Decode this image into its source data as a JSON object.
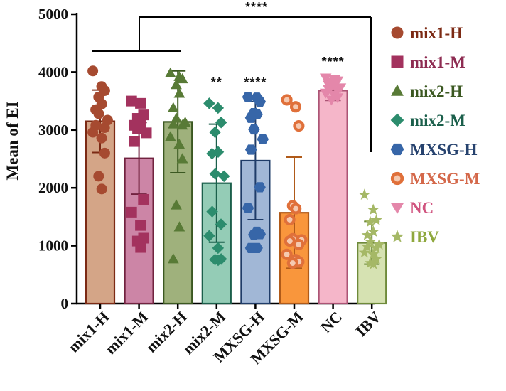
{
  "chart_data": {
    "type": "bar",
    "ylabel": "Mean of EI",
    "ylim": [
      0,
      5000
    ],
    "yticks": [
      0,
      1000,
      2000,
      3000,
      4000,
      5000
    ],
    "categories": [
      "mix1-H",
      "mix1-M",
      "mix2-H",
      "mix2-M",
      "MXSG-H",
      "MXSG-M",
      "NC",
      "IBV"
    ],
    "means": [
      3150,
      2510,
      3140,
      2080,
      2470,
      1570,
      3680,
      1050
    ],
    "sd": [
      540,
      620,
      880,
      1020,
      1020,
      960,
      170,
      370
    ],
    "points": [
      [
        4020,
        3750,
        3680,
        3570,
        3450,
        3350,
        3280,
        3170,
        3080,
        3040,
        2960,
        2860,
        2600,
        2200,
        1980
      ],
      [
        3500,
        3460,
        3260,
        3200,
        3130,
        3080,
        3020,
        2950,
        2800,
        1800,
        1580,
        1350,
        1130,
        1080,
        970
      ],
      [
        3980,
        3920,
        3880,
        3780,
        3630,
        3380,
        3200,
        3130,
        3100,
        3080,
        2880,
        2750,
        2500,
        1700,
        1320,
        770
      ],
      [
        3460,
        3380,
        3130,
        2960,
        2620,
        2590,
        2240,
        2200,
        1590,
        1370,
        1170,
        960,
        770,
        760,
        750
      ],
      [
        3570,
        3560,
        3490,
        3290,
        3270,
        3210,
        3010,
        2840,
        2660,
        2010,
        1650,
        1240,
        1200,
        1190,
        960,
        960
      ],
      [
        3520,
        3400,
        3070,
        1690,
        1640,
        1450,
        1120,
        1100,
        1080,
        1020,
        850,
        760,
        720,
        700
      ],
      [
        3900,
        3870,
        3850,
        3830,
        3800,
        3780,
        3760,
        3730,
        3700,
        3680,
        3640,
        3600,
        3560,
        3520
      ],
      [
        1880,
        1620,
        1440,
        1410,
        1240,
        1180,
        1070,
        1020,
        980,
        960,
        880,
        850,
        770,
        700,
        680
      ]
    ],
    "series_styles": [
      {
        "name": "mix1-H",
        "marker": "circle",
        "bar_fill": "#d4a587",
        "bar_stroke": "#7c2a14",
        "marker_color": "#a64a30",
        "legend_color": "#7c2a14"
      },
      {
        "name": "mix1-M",
        "marker": "square",
        "bar_fill": "#cc85a6",
        "bar_stroke": "#71223f",
        "marker_color": "#a3325e",
        "legend_color": "#8e2c52"
      },
      {
        "name": "mix2-H",
        "marker": "triangle",
        "bar_fill": "#9fb17c",
        "bar_stroke": "#3b5821",
        "marker_color": "#587a36",
        "legend_color": "#3b5821"
      },
      {
        "name": "mix2-M",
        "marker": "diamond",
        "bar_fill": "#94ccb6",
        "bar_stroke": "#1b5f4b",
        "marker_color": "#2c8c6d",
        "legend_color": "#1b5f4b"
      },
      {
        "name": "MXSG-H",
        "marker": "hexagon",
        "bar_fill": "#a1b7d6",
        "bar_stroke": "#1f3c68",
        "marker_color": "#3766a8",
        "legend_color": "#26426e"
      },
      {
        "name": "MXSG-M",
        "marker": "ring",
        "bar_fill": "#f9963c",
        "bar_stroke": "#b05a19",
        "marker_color": "#e0703a",
        "legend_color": "#d4684a"
      },
      {
        "name": "NC",
        "marker": "triangle-down",
        "bar_fill": "#f5b6c9",
        "bar_stroke": "#ac5475",
        "marker_color": "#e487aa",
        "legend_color": "#d0547f"
      },
      {
        "name": "IBV",
        "marker": "star",
        "bar_fill": "#d6e2b2",
        "bar_stroke": "#6e8a3a",
        "marker_color": "#a5b866",
        "legend_color": "#8fa83d"
      }
    ],
    "annotations": [
      {
        "text": "****",
        "position": "top bracket",
        "from": "mix1-H..mix2-H",
        "to": "IBV"
      },
      {
        "text": "**",
        "above": "mix2-M"
      },
      {
        "text": "****",
        "above": "MXSG-H"
      },
      {
        "text": "****",
        "above": "NC"
      }
    ],
    "legend_placement": "right"
  }
}
